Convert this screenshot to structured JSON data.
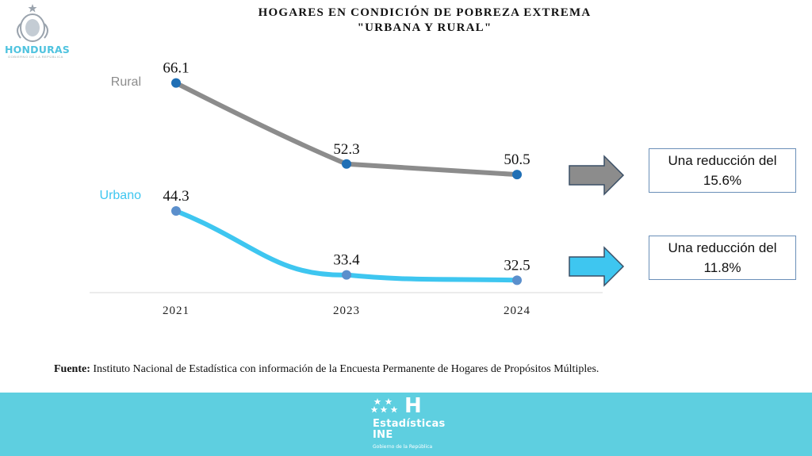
{
  "header": {
    "title_line1": "HOGARES EN CONDICIÓN DE POBREZA EXTREMA",
    "title_line2": "\"URBANA Y RURAL\"",
    "logo_text": "HONDURAS",
    "logo_subtext": "GOBIERNO DE LA REPÚBLICA"
  },
  "chart_data": {
    "type": "line",
    "title": "HOGARES EN CONDICIÓN DE POBREZA EXTREMA \"URBANA Y RURAL\"",
    "categories": [
      "2021",
      "2023",
      "2024"
    ],
    "series": [
      {
        "name": "Rural",
        "values": [
          66.1,
          52.3,
          50.5
        ],
        "color": "#8c8c8c",
        "marker_color": "#1f6fb5"
      },
      {
        "name": "Urbano",
        "values": [
          44.3,
          33.4,
          32.5
        ],
        "color": "#3ec6f0",
        "marker_color": "#5b8fcc"
      }
    ],
    "grid": false,
    "legend": "inline labels left of lines"
  },
  "callouts": [
    {
      "line1": "Una reducción del",
      "line2": "15.6%",
      "arrow_color": "#8c8c8c"
    },
    {
      "line1": "Una reducción del",
      "line2": "11.8%",
      "arrow_color": "#3ec6f0"
    }
  ],
  "footnote": {
    "label": "Fuente:",
    "text": " Instituto Nacional de Estadística con información de la Encuesta Permanente de Hogares de Propósitos Múltiples."
  },
  "footer": {
    "logo_letter": "H",
    "name_line1": "Estadísticas",
    "name_line2": "INE",
    "gov": "Gobierno de la República",
    "background": "#5ecfe0"
  }
}
